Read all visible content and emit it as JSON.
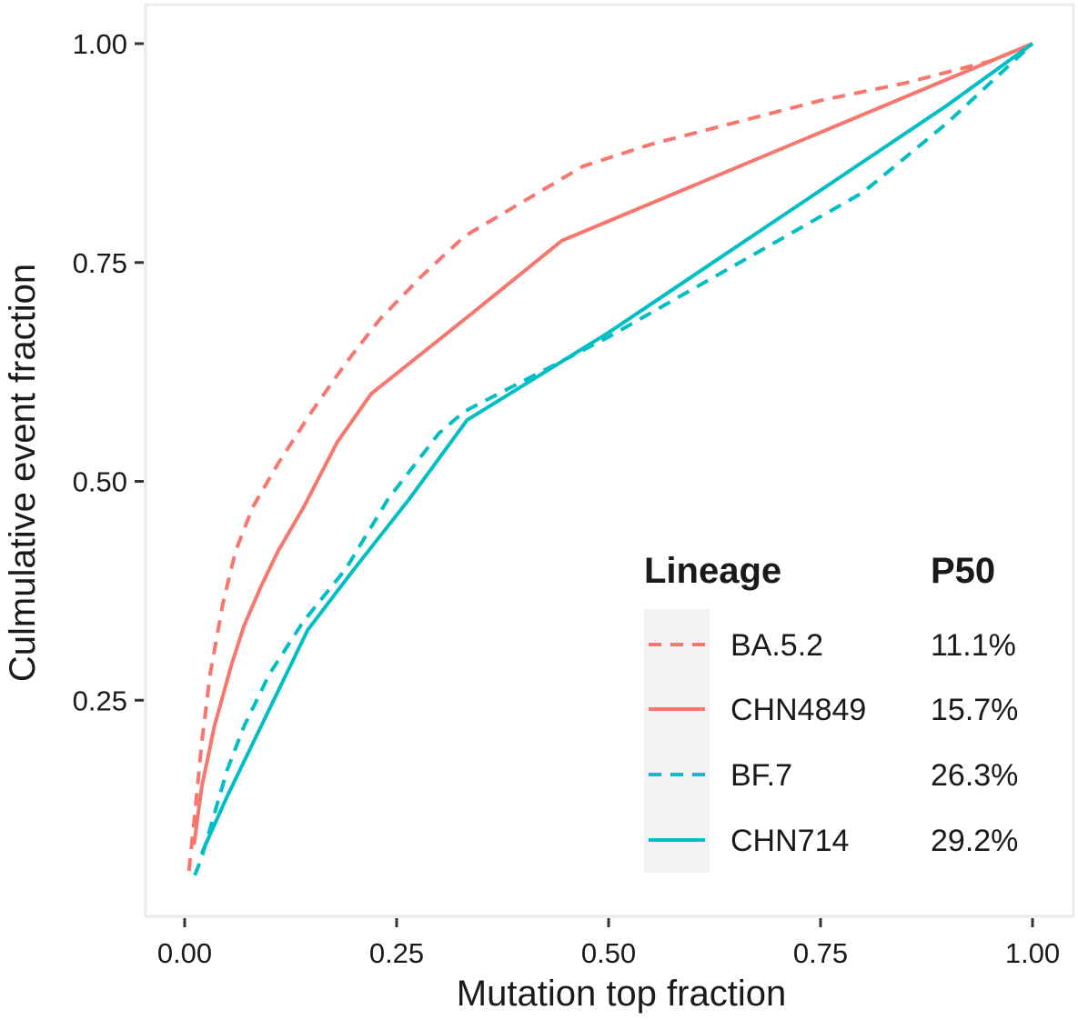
{
  "chart_data": {
    "type": "line",
    "title": "",
    "xlabel": "Mutation top fraction",
    "ylabel": "Culmulative event fraction",
    "xlim": [
      0.0,
      1.0
    ],
    "ylim": [
      0.0,
      1.0
    ],
    "x_ticks": [
      {
        "value": 0.0,
        "label": "0.00"
      },
      {
        "value": 0.25,
        "label": "0.25"
      },
      {
        "value": 0.5,
        "label": "0.50"
      },
      {
        "value": 0.75,
        "label": "0.75"
      },
      {
        "value": 1.0,
        "label": "1.00"
      }
    ],
    "y_ticks": [
      {
        "value": 0.25,
        "label": "0.25"
      },
      {
        "value": 0.5,
        "label": "0.50"
      },
      {
        "value": 0.75,
        "label": "0.75"
      },
      {
        "value": 1.0,
        "label": "1.00"
      }
    ],
    "grid": false,
    "legend": {
      "placement": "bottom-right",
      "title": "Lineage",
      "value_header": "P50"
    },
    "series": [
      {
        "name": "BA.5.2",
        "p50": "11.1%",
        "color": "#F8766D",
        "dash": "dashed",
        "x": [
          0.005,
          0.012,
          0.02,
          0.03,
          0.045,
          0.06,
          0.08,
          0.11,
          0.15,
          0.19,
          0.23,
          0.28,
          0.33,
          0.4,
          0.47,
          0.55,
          0.65,
          0.75,
          0.85,
          0.95,
          1.0
        ],
        "y": [
          0.055,
          0.12,
          0.2,
          0.28,
          0.36,
          0.42,
          0.47,
          0.52,
          0.58,
          0.635,
          0.685,
          0.735,
          0.78,
          0.82,
          0.86,
          0.885,
          0.91,
          0.935,
          0.955,
          0.98,
          1.0
        ]
      },
      {
        "name": "CHN4849",
        "p50": "15.7%",
        "color": "#F8766D",
        "dash": "solid",
        "x": [
          0.011,
          0.02,
          0.035,
          0.055,
          0.07,
          0.09,
          0.11,
          0.14,
          0.18,
          0.22,
          0.33,
          0.445,
          1.0
        ],
        "y": [
          0.085,
          0.15,
          0.22,
          0.29,
          0.335,
          0.38,
          0.42,
          0.47,
          0.545,
          0.6,
          0.685,
          0.775,
          1.0
        ]
      },
      {
        "name": "BF.7",
        "p50": "26.3%",
        "color": "#00BFC4",
        "dash": "dashed",
        "x": [
          0.012,
          0.02,
          0.035,
          0.05,
          0.07,
          0.1,
          0.14,
          0.19,
          0.24,
          0.3,
          0.33,
          0.4,
          0.5,
          0.6,
          0.7,
          0.8,
          0.9,
          1.0
        ],
        "y": [
          0.05,
          0.07,
          0.12,
          0.17,
          0.22,
          0.28,
          0.34,
          0.4,
          0.48,
          0.555,
          0.58,
          0.615,
          0.665,
          0.72,
          0.775,
          0.83,
          0.91,
          1.0
        ]
      },
      {
        "name": "CHN714",
        "p50": "29.2%",
        "color": "#00BFC4",
        "dash": "solid",
        "x": [
          0.02,
          0.05,
          0.1,
          0.145,
          0.2,
          0.265,
          0.333,
          0.4,
          0.5,
          0.6,
          0.7,
          0.8,
          0.9,
          1.0
        ],
        "y": [
          0.075,
          0.14,
          0.24,
          0.33,
          0.4,
          0.48,
          0.57,
          0.61,
          0.67,
          0.735,
          0.8,
          0.865,
          0.93,
          1.0
        ]
      }
    ]
  }
}
